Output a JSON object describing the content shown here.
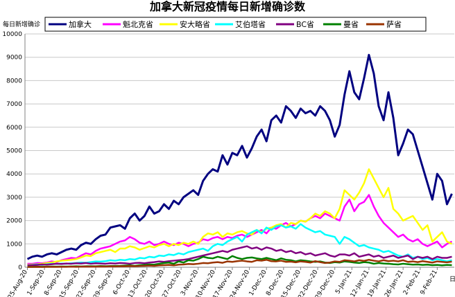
{
  "chart_data": {
    "type": "line",
    "title": "加拿大新冠疫情每日新增确诊数",
    "ylabel": "每日新增确诊",
    "xlabel": "日",
    "x": [
      "25-Aug-20",
      "27-Aug-20",
      "29-Aug-20",
      "31-Aug-20",
      "2-Sep-20",
      "4-Sep-20",
      "6-Sep-20",
      "8-Sep-20",
      "10-Sep-20",
      "12-Sep-20",
      "14-Sep-20",
      "16-Sep-20",
      "18-Sep-20",
      "20-Sep-20",
      "22-Sep-20",
      "24-Sep-20",
      "26-Sep-20",
      "28-Sep-20",
      "30-Sep-20",
      "2-Oct-20",
      "4-Oct-20",
      "6-Oct-20",
      "8-Oct-20",
      "10-Oct-20",
      "12-Oct-20",
      "14-Oct-20",
      "16-Oct-20",
      "18-Oct-20",
      "20-Oct-20",
      "22-Oct-20",
      "24-Oct-20",
      "26-Oct-20",
      "28-Oct-20",
      "30-Oct-20",
      "1-Nov-20",
      "3-Nov-20",
      "5-Nov-20",
      "7-Nov-20",
      "9-Nov-20",
      "11-Nov-20",
      "13-Nov-20",
      "15-Nov-20",
      "17-Nov-20",
      "19-Nov-20",
      "21-Nov-20",
      "23-Nov-20",
      "25-Nov-20",
      "27-Nov-20",
      "29-Nov-20",
      "1-Dec-20",
      "3-Dec-20",
      "5-Dec-20",
      "7-Dec-20",
      "9-Dec-20",
      "11-Dec-20",
      "13-Dec-20",
      "15-Dec-20",
      "17-Dec-20",
      "19-Dec-20",
      "21-Dec-20",
      "23-Dec-20",
      "25-Dec-20",
      "27-Dec-20",
      "29-Dec-20",
      "31-Dec-20",
      "2-Jan-21",
      "4-Jan-21",
      "6-Jan-21",
      "8-Jan-21",
      "10-Jan-21",
      "12-Jan-21",
      "14-Jan-21",
      "16-Jan-21",
      "18-Jan-21",
      "20-Jan-21",
      "22-Jan-21",
      "24-Jan-21",
      "26-Jan-21",
      "28-Jan-21",
      "30-Jan-21",
      "1-Feb-21",
      "3-Feb-21",
      "5-Feb-21",
      "7-Feb-21",
      "9-Feb-21",
      "11-Feb-21",
      "13-Feb-21",
      "15-Feb-21"
    ],
    "xlim": [
      "24-Aug-20",
      "16-Feb-21"
    ],
    "xticks": [
      "25-Aug-20",
      "1-Sep-20",
      "8-Sep-20",
      "15-Sep-20",
      "22-Sep-20",
      "29-Sep-20",
      "6-Oct-20",
      "13-Oct-20",
      "20-Oct-20",
      "27-Oct-20",
      "3-Nov-20",
      "10-Nov-20",
      "17-Nov-20",
      "24-Nov-20",
      "1-Dec-20",
      "8-Dec-20",
      "15-Dec-20",
      "22-Dec-20",
      "29-Dec-20",
      "5-Jan-21",
      "12-Jan-21",
      "19-Jan-21",
      "26-Jan-21",
      "2-Feb-21",
      "9-Feb-21"
    ],
    "ylim": [
      0,
      10000
    ],
    "yticks": [
      0,
      1000,
      2000,
      3000,
      4000,
      5000,
      6000,
      7000,
      8000,
      9000,
      10000
    ],
    "grid": true,
    "series": [
      {
        "name": "加拿大",
        "color": "#000080",
        "values": [
          350,
          450,
          500,
          450,
          550,
          600,
          550,
          650,
          750,
          800,
          750,
          950,
          1050,
          1000,
          1200,
          1350,
          1400,
          1700,
          1750,
          1800,
          1650,
          2100,
          2300,
          2000,
          2200,
          2600,
          2300,
          2400,
          2700,
          2500,
          2850,
          2700,
          3000,
          3150,
          3300,
          3100,
          3700,
          4000,
          4200,
          4100,
          4800,
          4400,
          4900,
          4800,
          5200,
          4700,
          5100,
          5600,
          5900,
          5400,
          6300,
          6500,
          6200,
          6900,
          6700,
          6400,
          6800,
          6600,
          6700,
          6500,
          6900,
          6700,
          6300,
          5600,
          6100,
          7400,
          8400,
          7500,
          7200,
          8100,
          9100,
          8300,
          6900,
          6300,
          7500,
          6400,
          4800,
          5300,
          5900,
          5700,
          5000,
          4300,
          3600,
          2900,
          4000,
          3700,
          2700,
          3150
        ]
      },
      {
        "name": "魁北克省",
        "color": "#ff00ff",
        "values": [
          150,
          150,
          180,
          170,
          200,
          250,
          220,
          300,
          350,
          400,
          380,
          500,
          600,
          550,
          700,
          800,
          850,
          900,
          1000,
          1100,
          1150,
          1300,
          1200,
          1050,
          1000,
          1100,
          950,
          1000,
          1100,
          1000,
          950,
          1050,
          1000,
          900,
          1000,
          1050,
          1200,
          1150,
          1250,
          1300,
          1200,
          1300,
          1250,
          1350,
          1400,
          1300,
          1400,
          1500,
          1600,
          1450,
          1700,
          1650,
          1800,
          1900,
          1750,
          1850,
          2000,
          1950,
          2100,
          2200,
          2100,
          2300,
          2200,
          2100,
          2000,
          2600,
          2900,
          2400,
          2700,
          2800,
          3100,
          2600,
          2200,
          1900,
          1700,
          1500,
          1300,
          1400,
          1200,
          1100,
          1200,
          1000,
          900,
          1000,
          1100,
          850,
          1000,
          1100
        ]
      },
      {
        "name": "安大略省",
        "color": "#ffff00",
        "values": [
          100,
          120,
          130,
          150,
          180,
          200,
          250,
          280,
          300,
          320,
          350,
          420,
          500,
          480,
          600,
          650,
          700,
          750,
          650,
          800,
          800,
          900,
          850,
          750,
          820,
          900,
          850,
          950,
          1000,
          900,
          1000,
          950,
          1050,
          1000,
          1100,
          1000,
          1300,
          1450,
          1400,
          1500,
          1300,
          1450,
          1400,
          1500,
          1550,
          1450,
          1400,
          1600,
          1500,
          1650,
          1700,
          1800,
          1850,
          1700,
          1900,
          1850,
          2000,
          1950,
          2100,
          2300,
          2200,
          2400,
          2300,
          2100,
          2500,
          3300,
          3100,
          2900,
          3200,
          3600,
          4200,
          3800,
          3400,
          3000,
          3400,
          2500,
          2300,
          2000,
          2100,
          2200,
          1900,
          1600,
          1800,
          1100,
          1300,
          1500,
          1100,
          1000
        ]
      },
      {
        "name": "艾伯塔省",
        "color": "#00ffff",
        "values": [
          80,
          100,
          120,
          100,
          130,
          150,
          140,
          160,
          150,
          170,
          180,
          200,
          190,
          220,
          250,
          240,
          260,
          300,
          280,
          320,
          300,
          350,
          330,
          400,
          380,
          450,
          420,
          500,
          480,
          550,
          520,
          600,
          550,
          650,
          700,
          750,
          800,
          700,
          900,
          1000,
          950,
          1100,
          1200,
          1300,
          1100,
          1400,
          1500,
          1600,
          1450,
          1700,
          1600,
          1750,
          1800,
          1700,
          1750,
          1650,
          1850,
          1700,
          1600,
          1500,
          1550,
          1400,
          1350,
          1300,
          1000,
          1300,
          1200,
          1050,
          900,
          950,
          850,
          800,
          750,
          650,
          700,
          600,
          500,
          450,
          550,
          400,
          450,
          350,
          400,
          300,
          350,
          300,
          250,
          300
        ]
      },
      {
        "name": "BC省",
        "color": "#800080",
        "values": [
          80,
          90,
          100,
          120,
          110,
          130,
          150,
          140,
          160,
          150,
          170,
          160,
          180,
          150,
          170,
          160,
          150,
          170,
          160,
          180,
          170,
          150,
          180,
          190,
          170,
          200,
          220,
          250,
          230,
          260,
          280,
          300,
          320,
          350,
          400,
          450,
          500,
          550,
          600,
          650,
          700,
          650,
          750,
          800,
          850,
          900,
          800,
          850,
          750,
          850,
          800,
          700,
          750,
          650,
          700,
          600,
          650,
          550,
          600,
          500,
          550,
          600,
          500,
          450,
          550,
          550,
          500,
          600,
          450,
          500,
          550,
          450,
          500,
          400,
          450,
          500,
          400,
          450,
          500,
          350,
          450,
          400,
          450,
          350,
          450,
          400,
          400,
          450
        ]
      },
      {
        "name": "曼省",
        "color": "#008000",
        "values": [
          20,
          20,
          25,
          20,
          25,
          30,
          25,
          30,
          30,
          35,
          40,
          35,
          40,
          45,
          40,
          50,
          45,
          50,
          55,
          60,
          70,
          80,
          60,
          90,
          100,
          120,
          110,
          150,
          180,
          200,
          150,
          250,
          200,
          300,
          280,
          350,
          450,
          400,
          380,
          450,
          400,
          350,
          480,
          400,
          350,
          400,
          420,
          380,
          350,
          400,
          350,
          300,
          380,
          320,
          300,
          250,
          300,
          280,
          250,
          230,
          250,
          200,
          180,
          220,
          200,
          250,
          230,
          200,
          180,
          220,
          200,
          150,
          180,
          160,
          150,
          130,
          120,
          150,
          130,
          110,
          120,
          100,
          110,
          90,
          100,
          80,
          100,
          90
        ]
      },
      {
        "name": "萨省",
        "color": "#993300",
        "values": [
          10,
          10,
          15,
          10,
          15,
          20,
          15,
          20,
          20,
          25,
          20,
          25,
          30,
          25,
          30,
          35,
          30,
          40,
          35,
          45,
          40,
          50,
          45,
          55,
          60,
          70,
          60,
          80,
          90,
          100,
          80,
          110,
          120,
          140,
          130,
          150,
          180,
          170,
          200,
          220,
          190,
          250,
          230,
          260,
          280,
          250,
          230,
          300,
          280,
          320,
          260,
          250,
          280,
          230,
          240,
          210,
          250,
          230,
          200,
          260,
          220,
          180,
          200,
          250,
          230,
          300,
          280,
          250,
          300,
          270,
          320,
          280,
          250,
          300,
          260,
          280,
          250,
          300,
          230,
          250,
          220,
          260,
          230,
          200,
          250,
          230,
          210,
          240
        ]
      }
    ]
  }
}
